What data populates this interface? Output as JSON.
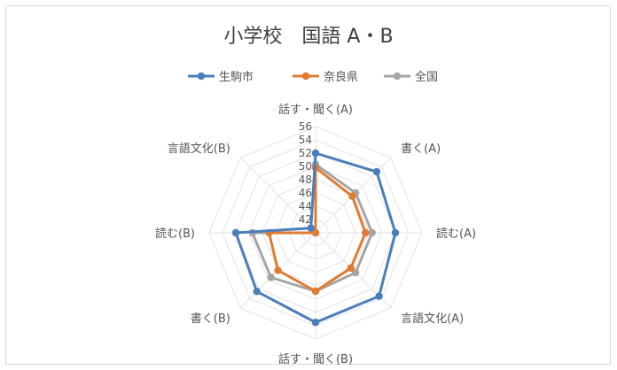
{
  "chart_data": {
    "type": "radar",
    "title": "小学校　国語 A・B",
    "categories": [
      "話す・聞く(A)",
      "書く(A)",
      "読む(A)",
      "言語文化(A)",
      "話す・聞く(B)",
      "書く(B)",
      "読む(B)",
      "言語文化(B)"
    ],
    "ticks": [
      "56",
      "54",
      "52",
      "50",
      "48",
      "46",
      "44",
      "42"
    ],
    "rlim": [
      40,
      56
    ],
    "legend_position": "top",
    "series": [
      {
        "name": "生駒市",
        "color": "#4a7ebb",
        "values": [
          52.0,
          53.0,
          52.0,
          53.5,
          53.5,
          52.5,
          52.0,
          41.0
        ]
      },
      {
        "name": "奈良県",
        "color": "#e07b32",
        "values": [
          49.8,
          47.8,
          47.5,
          47.5,
          48.8,
          48.0,
          47.0,
          40.0
        ]
      },
      {
        "name": "全国",
        "color": "#a5a5a5",
        "values": [
          50.3,
          48.5,
          48.5,
          48.5,
          48.8,
          49.5,
          49.5,
          40.0
        ]
      }
    ]
  }
}
